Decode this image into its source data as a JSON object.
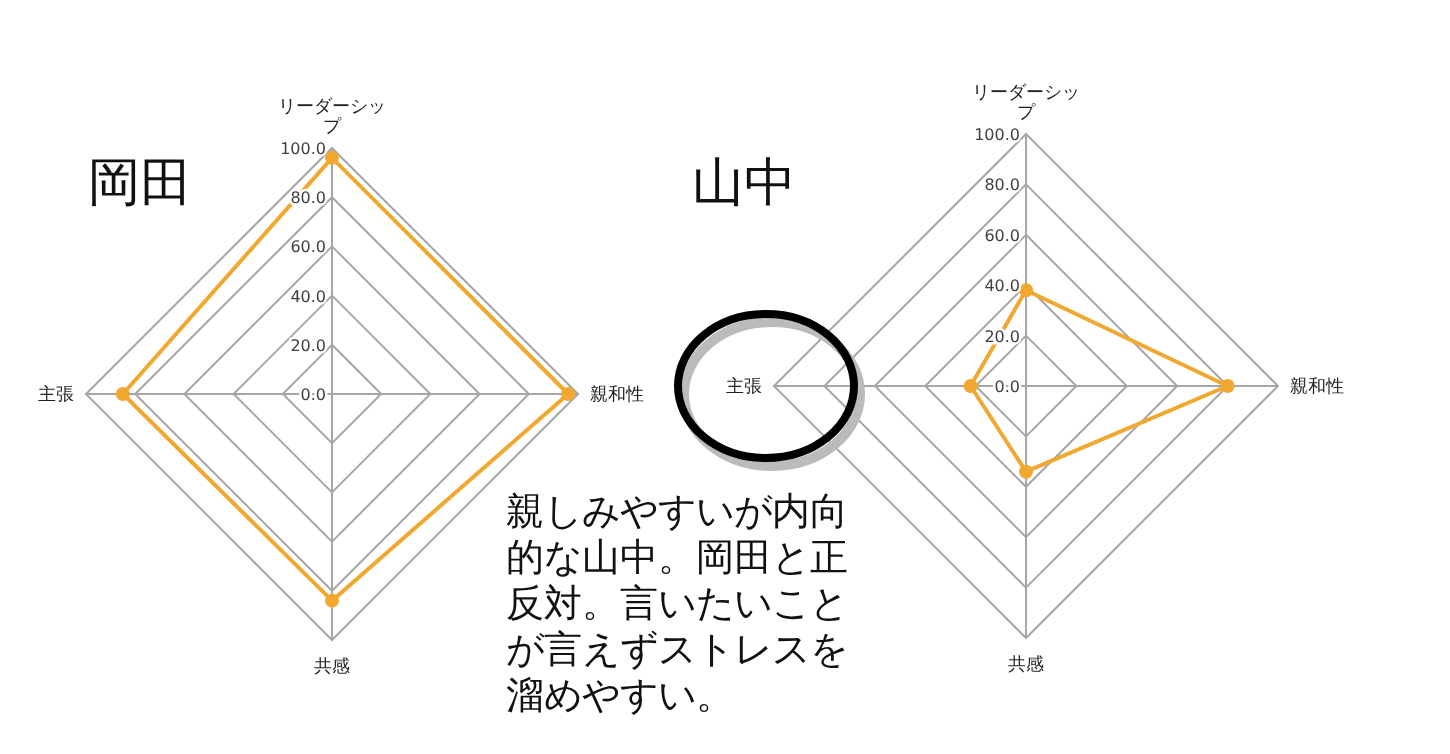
{
  "chart_data": [
    {
      "type": "radar",
      "title": "岡田",
      "categories": [
        "リーダーシップ",
        "親和性",
        "共感",
        "主張"
      ],
      "series": [
        {
          "color": "#f0a830",
          "values": [
            96,
            96,
            84,
            85
          ]
        }
      ],
      "ylim": [
        0,
        100
      ],
      "yticks": [
        {
          "value": 0,
          "label": "0.0"
        },
        {
          "value": 20,
          "label": "20.0"
        },
        {
          "value": 40,
          "label": "40.0"
        },
        {
          "value": 60,
          "label": "60.0"
        },
        {
          "value": 80,
          "label": "80.0"
        },
        {
          "value": 100,
          "label": "100.0"
        }
      ],
      "grid": true,
      "marker": "circle"
    },
    {
      "type": "radar",
      "title": "山中",
      "categories": [
        "リーダーシップ",
        "親和性",
        "共感",
        "主張"
      ],
      "series": [
        {
          "color": "#f0a830",
          "values": [
            38,
            80,
            34,
            22
          ]
        }
      ],
      "ylim": [
        0,
        100
      ],
      "yticks": [
        {
          "value": 0,
          "label": "0.0"
        },
        {
          "value": 20,
          "label": "20.0"
        },
        {
          "value": 40,
          "label": "40.0"
        },
        {
          "value": 60,
          "label": "60.0"
        },
        {
          "value": 80,
          "label": "80.0"
        },
        {
          "value": 100,
          "label": "100.0"
        }
      ],
      "grid": true,
      "marker": "circle",
      "annotations": [
        "親しみやすいが内向的な山中。岡田と正反対。言いたいことが言えずストレスを溜めやすい。"
      ]
    }
  ]
}
